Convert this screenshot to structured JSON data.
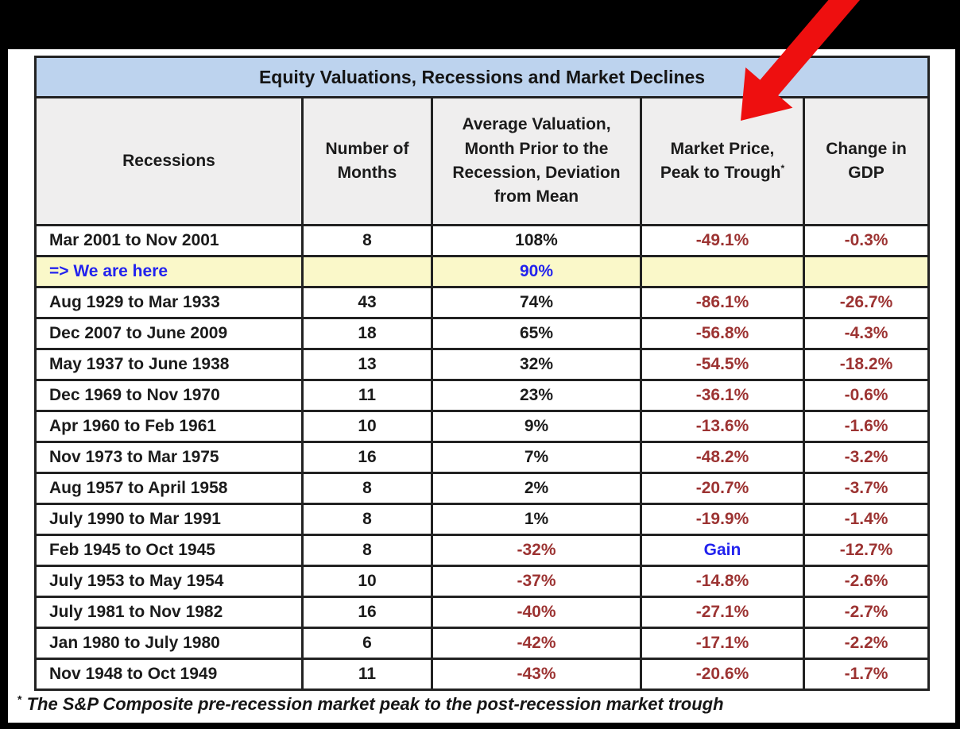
{
  "table": {
    "title": "Equity Valuations, Recessions and Market Declines",
    "columns": [
      {
        "id": "recession",
        "label": "Recessions",
        "lines": [
          "Recessions"
        ],
        "sup": ""
      },
      {
        "id": "months",
        "label": "Number of Months",
        "lines": [
          "Number of",
          "Months"
        ],
        "sup": ""
      },
      {
        "id": "valuation",
        "label": "Average Valuation, Month Prior to the Recession, Deviation from Mean",
        "lines": [
          "Average Valuation,",
          "Month Prior to the",
          "Recession, Deviation",
          "from Mean"
        ],
        "sup": ""
      },
      {
        "id": "market",
        "label": "Market Price, Peak to Trough",
        "lines": [
          "Market Price,",
          "Peak to Trough"
        ],
        "sup": "*"
      },
      {
        "id": "gdp",
        "label": "Change in GDP",
        "lines": [
          "Change in",
          "GDP"
        ],
        "sup": ""
      }
    ],
    "rows": [
      {
        "recession": "Mar 2001 to Nov 2001",
        "recession_color": "black",
        "months": "8",
        "valuation": "108%",
        "valuation_color": "black",
        "market": "-49.1%",
        "market_color": "red",
        "gdp": "-0.3%",
        "gdp_color": "red",
        "highlight": false
      },
      {
        "recession": "=> We are here",
        "recession_color": "blue",
        "months": "",
        "valuation": "90%",
        "valuation_color": "blue",
        "market": "",
        "market_color": "red",
        "gdp": "",
        "gdp_color": "red",
        "highlight": true
      },
      {
        "recession": "Aug 1929 to Mar 1933",
        "recession_color": "black",
        "months": "43",
        "valuation": "74%",
        "valuation_color": "black",
        "market": "-86.1%",
        "market_color": "red",
        "gdp": "-26.7%",
        "gdp_color": "red",
        "highlight": false
      },
      {
        "recession": "Dec 2007 to June 2009",
        "recession_color": "black",
        "months": "18",
        "valuation": "65%",
        "valuation_color": "black",
        "market": "-56.8%",
        "market_color": "red",
        "gdp": "-4.3%",
        "gdp_color": "red",
        "highlight": false
      },
      {
        "recession": "May 1937 to June 1938",
        "recession_color": "black",
        "months": "13",
        "valuation": "32%",
        "valuation_color": "black",
        "market": "-54.5%",
        "market_color": "red",
        "gdp": "-18.2%",
        "gdp_color": "red",
        "highlight": false
      },
      {
        "recession": "Dec 1969 to Nov 1970",
        "recession_color": "black",
        "months": "11",
        "valuation": "23%",
        "valuation_color": "black",
        "market": "-36.1%",
        "market_color": "red",
        "gdp": "-0.6%",
        "gdp_color": "red",
        "highlight": false
      },
      {
        "recession": "Apr 1960 to Feb 1961",
        "recession_color": "black",
        "months": "10",
        "valuation": "9%",
        "valuation_color": "black",
        "market": "-13.6%",
        "market_color": "red",
        "gdp": "-1.6%",
        "gdp_color": "red",
        "highlight": false
      },
      {
        "recession": "Nov 1973 to Mar 1975",
        "recession_color": "black",
        "months": "16",
        "valuation": "7%",
        "valuation_color": "black",
        "market": "-48.2%",
        "market_color": "red",
        "gdp": "-3.2%",
        "gdp_color": "red",
        "highlight": false
      },
      {
        "recession": "Aug 1957 to April 1958",
        "recession_color": "black",
        "months": "8",
        "valuation": "2%",
        "valuation_color": "black",
        "market": "-20.7%",
        "market_color": "red",
        "gdp": "-3.7%",
        "gdp_color": "red",
        "highlight": false
      },
      {
        "recession": "July 1990 to Mar 1991",
        "recession_color": "black",
        "months": "8",
        "valuation": "1%",
        "valuation_color": "black",
        "market": "-19.9%",
        "market_color": "red",
        "gdp": "-1.4%",
        "gdp_color": "red",
        "highlight": false
      },
      {
        "recession": "Feb 1945 to Oct 1945",
        "recession_color": "black",
        "months": "8",
        "valuation": "-32%",
        "valuation_color": "red",
        "market": "Gain",
        "market_color": "blue",
        "gdp": "-12.7%",
        "gdp_color": "red",
        "highlight": false
      },
      {
        "recession": "July 1953 to May 1954",
        "recession_color": "black",
        "months": "10",
        "valuation": "-37%",
        "valuation_color": "red",
        "market": "-14.8%",
        "market_color": "red",
        "gdp": "-2.6%",
        "gdp_color": "red",
        "highlight": false
      },
      {
        "recession": "July 1981 to Nov 1982",
        "recession_color": "black",
        "months": "16",
        "valuation": "-40%",
        "valuation_color": "red",
        "market": "-27.1%",
        "market_color": "red",
        "gdp": "-2.7%",
        "gdp_color": "red",
        "highlight": false
      },
      {
        "recession": "Jan 1980 to July 1980",
        "recession_color": "black",
        "months": "6",
        "valuation": "-42%",
        "valuation_color": "red",
        "market": "-17.1%",
        "market_color": "red",
        "gdp": "-2.2%",
        "gdp_color": "red",
        "highlight": false
      },
      {
        "recession": "Nov 1948 to Oct 1949",
        "recession_color": "black",
        "months": "11",
        "valuation": "-43%",
        "valuation_color": "red",
        "market": "-20.6%",
        "market_color": "red",
        "gdp": "-1.7%",
        "gdp_color": "red",
        "highlight": false
      }
    ]
  },
  "footnote": {
    "marker": "*",
    "text": "The S&P Composite pre-recession market peak to the post-recession market trough"
  },
  "colors": {
    "title_bar": "#bdd3ee",
    "header_bg": "#efeeee",
    "highlight_row": "#faf8c9",
    "negative_text": "#9c3332",
    "blue_text": "#2222ee",
    "arrow": "#ee0f0f",
    "frame": "#000000"
  }
}
